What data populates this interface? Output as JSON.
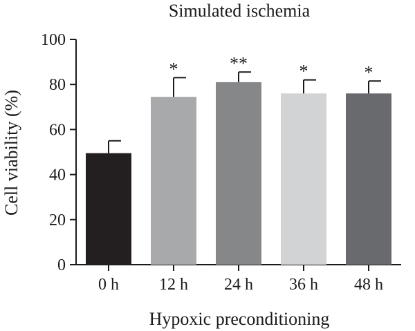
{
  "chart_data": {
    "type": "bar",
    "title": "Simulated ischemia",
    "xlabel": "Hypoxic preconditioning",
    "ylabel": "Cell viability (%)",
    "ylim": [
      0,
      100
    ],
    "yticks": [
      0,
      20,
      40,
      60,
      80,
      100
    ],
    "grid": false,
    "categories": [
      "0 h",
      "12 h",
      "24 h",
      "36 h",
      "48 h"
    ],
    "values": [
      49.5,
      74.5,
      81,
      76,
      76
    ],
    "error": [
      5.5,
      8.5,
      4.5,
      6,
      5.5
    ],
    "significance": [
      "",
      "*",
      "**",
      "*",
      "*"
    ],
    "colors": [
      "#231f20",
      "#a7a9ab",
      "#858789",
      "#d2d3d5",
      "#696a6d"
    ]
  }
}
